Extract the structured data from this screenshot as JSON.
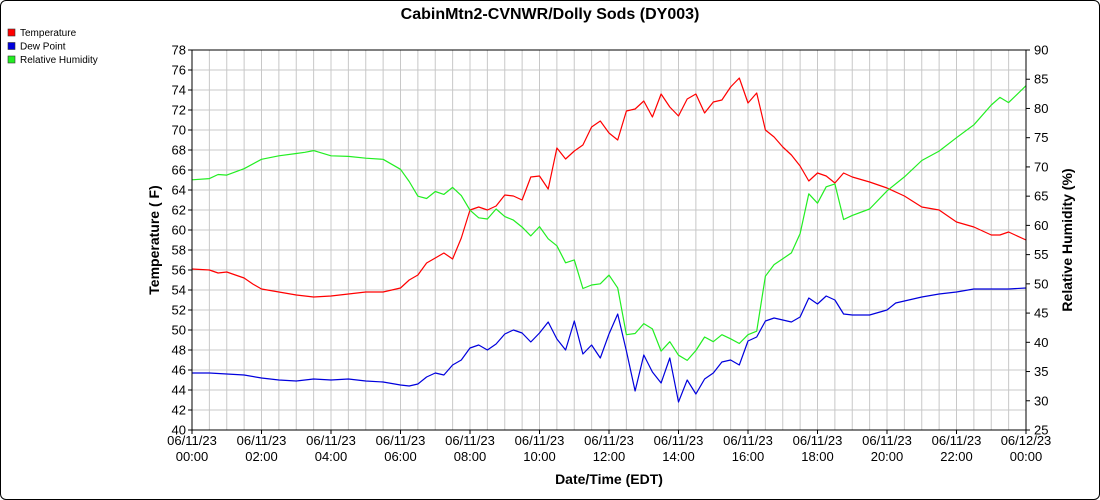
{
  "chart_data": {
    "type": "line",
    "title": "CabinMtn2-CVNWR/Dolly Sods (DY003)",
    "xlabel": "Date/Time (EDT)",
    "ylabel_left": "Temperature ( F)",
    "ylabel_right": "Relative Humidity (%)",
    "ylim_left": [
      40,
      78
    ],
    "ylim_right": [
      25,
      90
    ],
    "yticks_left": [
      40,
      42,
      44,
      46,
      48,
      50,
      52,
      54,
      56,
      58,
      60,
      62,
      64,
      66,
      68,
      70,
      72,
      74,
      76,
      78
    ],
    "yticks_right": [
      25,
      30,
      35,
      40,
      45,
      50,
      55,
      60,
      65,
      70,
      75,
      80,
      85,
      90
    ],
    "xlim_hours": [
      0,
      24
    ],
    "xticks": [
      {
        "h": 0,
        "date": "06/11/23",
        "time": "00:00"
      },
      {
        "h": 2,
        "date": "06/11/23",
        "time": "02:00"
      },
      {
        "h": 4,
        "date": "06/11/23",
        "time": "04:00"
      },
      {
        "h": 6,
        "date": "06/11/23",
        "time": "06:00"
      },
      {
        "h": 8,
        "date": "06/11/23",
        "time": "08:00"
      },
      {
        "h": 10,
        "date": "06/11/23",
        "time": "10:00"
      },
      {
        "h": 12,
        "date": "06/11/23",
        "time": "12:00"
      },
      {
        "h": 14,
        "date": "06/11/23",
        "time": "14:00"
      },
      {
        "h": 16,
        "date": "06/11/23",
        "time": "16:00"
      },
      {
        "h": 18,
        "date": "06/11/23",
        "time": "18:00"
      },
      {
        "h": 20,
        "date": "06/11/23",
        "time": "20:00"
      },
      {
        "h": 22,
        "date": "06/11/23",
        "time": "22:00"
      },
      {
        "h": 24,
        "date": "06/12/23",
        "time": "00:00"
      }
    ],
    "grid": true,
    "legend_position": "top-left",
    "series": [
      {
        "name": "Temperature",
        "color": "#ff0000",
        "axis": "left",
        "points": [
          [
            0,
            56.1
          ],
          [
            0.5,
            56.0
          ],
          [
            0.75,
            55.7
          ],
          [
            1,
            55.8
          ],
          [
            1.25,
            55.5
          ],
          [
            1.5,
            55.2
          ],
          [
            1.75,
            54.6
          ],
          [
            2,
            54.1
          ],
          [
            2.5,
            53.8
          ],
          [
            3,
            53.5
          ],
          [
            3.5,
            53.3
          ],
          [
            4,
            53.4
          ],
          [
            4.5,
            53.6
          ],
          [
            5,
            53.8
          ],
          [
            5.5,
            53.8
          ],
          [
            6,
            54.2
          ],
          [
            6.25,
            55.0
          ],
          [
            6.5,
            55.5
          ],
          [
            6.75,
            56.7
          ],
          [
            7,
            57.2
          ],
          [
            7.25,
            57.7
          ],
          [
            7.5,
            57.1
          ],
          [
            7.75,
            59.2
          ],
          [
            8,
            62.0
          ],
          [
            8.25,
            62.3
          ],
          [
            8.5,
            62.0
          ],
          [
            8.75,
            62.4
          ],
          [
            9,
            63.5
          ],
          [
            9.25,
            63.4
          ],
          [
            9.5,
            63.0
          ],
          [
            9.75,
            65.3
          ],
          [
            10,
            65.4
          ],
          [
            10.25,
            64.1
          ],
          [
            10.5,
            68.2
          ],
          [
            10.75,
            67.1
          ],
          [
            11,
            67.9
          ],
          [
            11.25,
            68.5
          ],
          [
            11.5,
            70.3
          ],
          [
            11.75,
            70.9
          ],
          [
            12,
            69.7
          ],
          [
            12.25,
            69.0
          ],
          [
            12.5,
            71.9
          ],
          [
            12.75,
            72.1
          ],
          [
            13,
            72.9
          ],
          [
            13.25,
            71.3
          ],
          [
            13.5,
            73.6
          ],
          [
            13.75,
            72.3
          ],
          [
            14,
            71.4
          ],
          [
            14.25,
            73.1
          ],
          [
            14.5,
            73.6
          ],
          [
            14.75,
            71.7
          ],
          [
            15,
            72.8
          ],
          [
            15.25,
            73.0
          ],
          [
            15.5,
            74.3
          ],
          [
            15.75,
            75.2
          ],
          [
            16,
            72.7
          ],
          [
            16.25,
            73.7
          ],
          [
            16.5,
            70.0
          ],
          [
            16.75,
            69.3
          ],
          [
            17,
            68.3
          ],
          [
            17.25,
            67.5
          ],
          [
            17.5,
            66.4
          ],
          [
            17.75,
            64.9
          ],
          [
            18,
            65.7
          ],
          [
            18.25,
            65.4
          ],
          [
            18.5,
            64.7
          ],
          [
            18.75,
            65.7
          ],
          [
            19,
            65.3
          ],
          [
            19.5,
            64.8
          ],
          [
            20,
            64.2
          ],
          [
            20.5,
            63.4
          ],
          [
            21,
            62.3
          ],
          [
            21.5,
            62.0
          ],
          [
            22,
            60.8
          ],
          [
            22.5,
            60.3
          ],
          [
            23,
            59.5
          ],
          [
            23.25,
            59.5
          ],
          [
            23.5,
            59.8
          ],
          [
            24,
            59.0
          ]
        ]
      },
      {
        "name": "Dew Point",
        "color": "#0000dd",
        "axis": "left",
        "points": [
          [
            0,
            45.7
          ],
          [
            0.5,
            45.7
          ],
          [
            1,
            45.6
          ],
          [
            1.5,
            45.5
          ],
          [
            2,
            45.2
          ],
          [
            2.5,
            45.0
          ],
          [
            3,
            44.9
          ],
          [
            3.5,
            45.1
          ],
          [
            4,
            45.0
          ],
          [
            4.5,
            45.1
          ],
          [
            5,
            44.9
          ],
          [
            5.5,
            44.8
          ],
          [
            6,
            44.5
          ],
          [
            6.25,
            44.4
          ],
          [
            6.5,
            44.6
          ],
          [
            6.75,
            45.3
          ],
          [
            7,
            45.7
          ],
          [
            7.25,
            45.5
          ],
          [
            7.5,
            46.5
          ],
          [
            7.75,
            47.0
          ],
          [
            8,
            48.2
          ],
          [
            8.25,
            48.5
          ],
          [
            8.5,
            48.0
          ],
          [
            8.75,
            48.6
          ],
          [
            9,
            49.6
          ],
          [
            9.25,
            50.0
          ],
          [
            9.5,
            49.7
          ],
          [
            9.75,
            48.8
          ],
          [
            10,
            49.7
          ],
          [
            10.25,
            50.8
          ],
          [
            10.5,
            49.1
          ],
          [
            10.75,
            48.0
          ],
          [
            11,
            50.9
          ],
          [
            11.25,
            47.6
          ],
          [
            11.5,
            48.5
          ],
          [
            11.75,
            47.2
          ],
          [
            12,
            49.6
          ],
          [
            12.25,
            51.6
          ],
          [
            12.5,
            47.9
          ],
          [
            12.75,
            43.9
          ],
          [
            13,
            47.5
          ],
          [
            13.25,
            45.8
          ],
          [
            13.5,
            44.7
          ],
          [
            13.75,
            47.2
          ],
          [
            14,
            42.8
          ],
          [
            14.25,
            45.0
          ],
          [
            14.5,
            43.6
          ],
          [
            14.75,
            45.1
          ],
          [
            15,
            45.7
          ],
          [
            15.25,
            46.8
          ],
          [
            15.5,
            47.0
          ],
          [
            15.75,
            46.5
          ],
          [
            16,
            48.9
          ],
          [
            16.25,
            49.3
          ],
          [
            16.5,
            50.9
          ],
          [
            16.75,
            51.2
          ],
          [
            17,
            51.0
          ],
          [
            17.25,
            50.8
          ],
          [
            17.5,
            51.3
          ],
          [
            17.75,
            53.2
          ],
          [
            18,
            52.6
          ],
          [
            18.25,
            53.4
          ],
          [
            18.5,
            53.0
          ],
          [
            18.75,
            51.6
          ],
          [
            19,
            51.5
          ],
          [
            19.5,
            51.5
          ],
          [
            20,
            52.0
          ],
          [
            20.25,
            52.7
          ],
          [
            20.5,
            52.9
          ],
          [
            21,
            53.3
          ],
          [
            21.5,
            53.6
          ],
          [
            22,
            53.8
          ],
          [
            22.5,
            54.1
          ],
          [
            23,
            54.1
          ],
          [
            23.5,
            54.1
          ],
          [
            24,
            54.2
          ]
        ]
      },
      {
        "name": "Relative Humidity",
        "color": "#22ee22",
        "axis": "right",
        "points": [
          [
            0,
            67.8
          ],
          [
            0.5,
            68.0
          ],
          [
            0.75,
            68.7
          ],
          [
            1,
            68.6
          ],
          [
            1.5,
            69.7
          ],
          [
            2,
            71.3
          ],
          [
            2.5,
            71.9
          ],
          [
            3,
            72.3
          ],
          [
            3.25,
            72.5
          ],
          [
            3.5,
            72.8
          ],
          [
            4,
            71.9
          ],
          [
            4.5,
            71.8
          ],
          [
            5,
            71.5
          ],
          [
            5.5,
            71.3
          ],
          [
            6,
            69.6
          ],
          [
            6.25,
            67.5
          ],
          [
            6.5,
            65.0
          ],
          [
            6.75,
            64.6
          ],
          [
            7,
            65.8
          ],
          [
            7.25,
            65.3
          ],
          [
            7.5,
            66.5
          ],
          [
            7.75,
            65.1
          ],
          [
            8,
            62.6
          ],
          [
            8.25,
            61.3
          ],
          [
            8.5,
            61.1
          ],
          [
            8.75,
            62.8
          ],
          [
            9,
            61.5
          ],
          [
            9.25,
            60.9
          ],
          [
            9.5,
            59.7
          ],
          [
            9.75,
            58.2
          ],
          [
            10,
            59.8
          ],
          [
            10.25,
            57.7
          ],
          [
            10.5,
            56.5
          ],
          [
            10.75,
            53.6
          ],
          [
            11,
            54.1
          ],
          [
            11.25,
            49.2
          ],
          [
            11.5,
            49.8
          ],
          [
            11.75,
            50.0
          ],
          [
            12,
            51.5
          ],
          [
            12.25,
            49.3
          ],
          [
            12.5,
            41.3
          ],
          [
            12.75,
            41.5
          ],
          [
            13,
            43.2
          ],
          [
            13.25,
            42.3
          ],
          [
            13.5,
            38.5
          ],
          [
            13.75,
            40.1
          ],
          [
            14,
            37.8
          ],
          [
            14.25,
            36.9
          ],
          [
            14.5,
            38.6
          ],
          [
            14.75,
            40.9
          ],
          [
            15,
            40.1
          ],
          [
            15.25,
            41.3
          ],
          [
            15.5,
            40.6
          ],
          [
            15.75,
            39.8
          ],
          [
            16,
            41.3
          ],
          [
            16.25,
            41.9
          ],
          [
            16.5,
            51.3
          ],
          [
            16.75,
            53.3
          ],
          [
            17,
            54.3
          ],
          [
            17.25,
            55.3
          ],
          [
            17.5,
            58.6
          ],
          [
            17.75,
            65.4
          ],
          [
            18,
            63.8
          ],
          [
            18.25,
            66.6
          ],
          [
            18.5,
            67.1
          ],
          [
            18.75,
            61.0
          ],
          [
            19,
            61.7
          ],
          [
            19.5,
            62.8
          ],
          [
            20,
            65.9
          ],
          [
            20.5,
            68.3
          ],
          [
            21,
            71.1
          ],
          [
            21.5,
            72.7
          ],
          [
            22,
            75.0
          ],
          [
            22.5,
            77.2
          ],
          [
            23,
            80.6
          ],
          [
            23.25,
            81.9
          ],
          [
            23.5,
            81.0
          ],
          [
            24,
            83.9
          ]
        ]
      }
    ]
  }
}
